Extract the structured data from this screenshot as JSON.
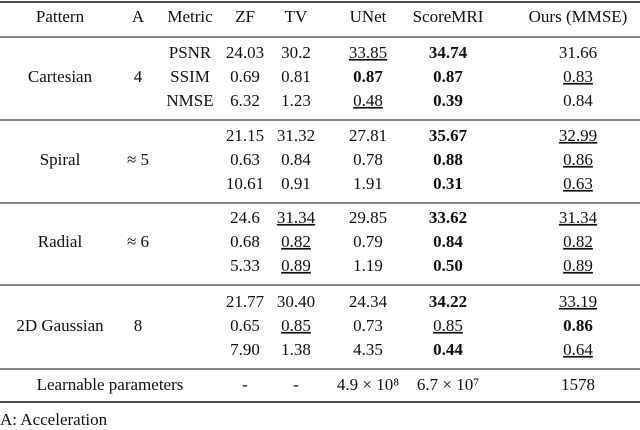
{
  "table": {
    "header": [
      "Pattern",
      "A",
      "Metric",
      "ZF",
      "TV",
      "UNet",
      "ScoreMRI",
      "Ours (MMSE)"
    ],
    "groups": [
      {
        "pattern": "Cartesian",
        "acceleration": "4",
        "rows": [
          {
            "metric": "PSNR",
            "cells": [
              "24.03",
              "30.2",
              {
                "text": "33.85",
                "style": "underline"
              },
              {
                "text": "34.74",
                "style": "bold"
              },
              "31.66"
            ]
          },
          {
            "metric": "SSIM",
            "cells": [
              "0.69",
              "0.81",
              {
                "text": "0.87",
                "style": "bold"
              },
              {
                "text": "0.87",
                "style": "bold"
              },
              {
                "text": "0.83",
                "style": "underline"
              }
            ]
          },
          {
            "metric": "NMSE",
            "cells": [
              "6.32",
              "1.23",
              {
                "text": "0.48",
                "style": "underline"
              },
              {
                "text": "0.39",
                "style": "bold"
              },
              "0.84"
            ]
          }
        ]
      },
      {
        "pattern": "Spiral",
        "acceleration": "≈ 5",
        "rows": [
          {
            "cells": [
              "21.15",
              "31.32",
              "27.81",
              {
                "text": "35.67",
                "style": "bold"
              },
              {
                "text": "32.99",
                "style": "underline"
              }
            ]
          },
          {
            "cells": [
              "0.63",
              "0.84",
              "0.78",
              {
                "text": "0.88",
                "style": "bold"
              },
              {
                "text": "0.86",
                "style": "underline"
              }
            ]
          },
          {
            "cells": [
              "10.61",
              "0.91",
              "1.91",
              {
                "text": "0.31",
                "style": "bold"
              },
              {
                "text": "0.63",
                "style": "underline"
              }
            ]
          }
        ]
      },
      {
        "pattern": "Radial",
        "acceleration": "≈ 6",
        "rows": [
          {
            "cells": [
              "24.6",
              {
                "text": "31.34",
                "style": "underline"
              },
              "29.85",
              {
                "text": "33.62",
                "style": "bold"
              },
              {
                "text": "31.34",
                "style": "underline"
              }
            ]
          },
          {
            "cells": [
              "0.68",
              {
                "text": "0.82",
                "style": "underline"
              },
              "0.79",
              {
                "text": "0.84",
                "style": "bold"
              },
              {
                "text": "0.82",
                "style": "underline"
              }
            ]
          },
          {
            "cells": [
              "5.33",
              {
                "text": "0.89",
                "style": "underline"
              },
              "1.19",
              {
                "text": "0.50",
                "style": "bold"
              },
              {
                "text": "0.89",
                "style": "underline"
              }
            ]
          }
        ]
      },
      {
        "pattern": "2D Gaussian",
        "acceleration": "8",
        "rows": [
          {
            "cells": [
              "21.77",
              "30.40",
              "24.34",
              {
                "text": "34.22",
                "style": "bold"
              },
              {
                "text": "33.19",
                "style": "underline"
              }
            ]
          },
          {
            "cells": [
              "0.65",
              {
                "text": "0.85",
                "style": "underline"
              },
              "0.73",
              {
                "text": "0.85",
                "style": "underline"
              },
              {
                "text": "0.86",
                "style": "bold"
              }
            ]
          },
          {
            "cells": [
              "7.90",
              "1.38",
              "4.35",
              {
                "text": "0.44",
                "style": "bold"
              },
              {
                "text": "0.64",
                "style": "underline"
              }
            ]
          }
        ]
      }
    ],
    "parameters": {
      "label": "Learnable parameters",
      "cells": [
        "-",
        "-",
        "4.9 × 10⁸",
        "6.7 × 10⁷",
        "1578"
      ]
    },
    "footnote": "A: Acceleration"
  }
}
